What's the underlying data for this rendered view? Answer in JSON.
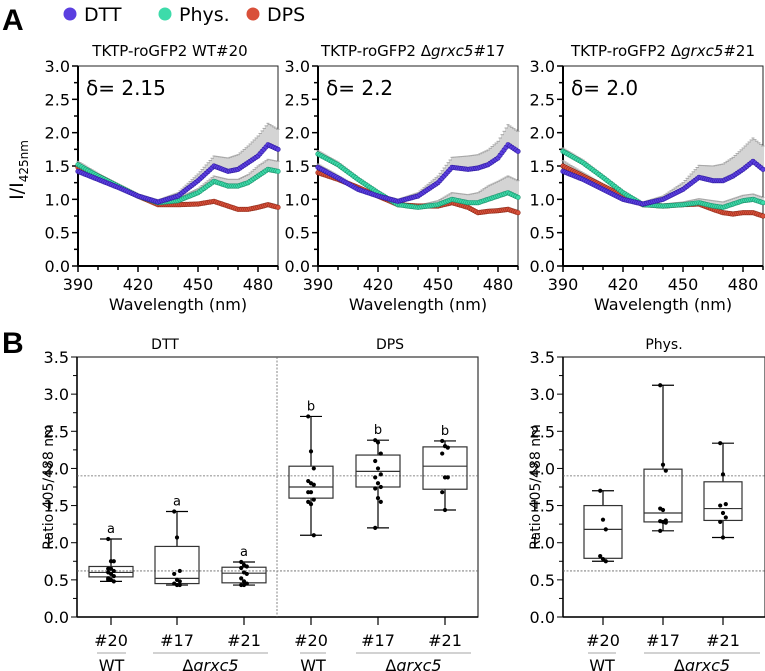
{
  "panel_labels": {
    "a": "A",
    "b": "B"
  },
  "legend": [
    {
      "label": "DTT",
      "color": "#5b3fe0"
    },
    {
      "label": "Phys.",
      "color": "#3ddbaa"
    },
    {
      "label": "DPS",
      "color": "#d9503a"
    }
  ],
  "chart_data": [
    {
      "type": "line",
      "title": "TKTP-roGFP2 WT#20",
      "annotation": "δ= 2.15",
      "xlabel": "Wavelength (nm)",
      "ylabel": "I/I425nm",
      "xlim": [
        390,
        490
      ],
      "ylim": [
        0,
        3.0
      ],
      "xticks": [
        390,
        420,
        450,
        480
      ],
      "yticks": [
        "0.0",
        "0.5",
        "1.0",
        "1.5",
        "2.0",
        "2.5",
        "3.0"
      ],
      "series": [
        {
          "name": "DTT",
          "x": [
            390,
            400,
            410,
            420,
            430,
            440,
            450,
            458,
            465,
            470,
            475,
            480,
            485,
            490
          ],
          "y": [
            1.42,
            1.3,
            1.18,
            1.05,
            0.96,
            1.05,
            1.28,
            1.5,
            1.42,
            1.45,
            1.55,
            1.65,
            1.82,
            1.75
          ],
          "err": [
            0.05,
            0.04,
            0.03,
            0.03,
            0.03,
            0.05,
            0.1,
            0.15,
            0.2,
            0.22,
            0.25,
            0.3,
            0.32,
            0.3
          ]
        },
        {
          "name": "Phys.",
          "x": [
            390,
            400,
            410,
            420,
            430,
            440,
            450,
            458,
            465,
            470,
            475,
            480,
            485,
            490
          ],
          "y": [
            1.52,
            1.35,
            1.2,
            1.05,
            0.95,
            0.98,
            1.1,
            1.27,
            1.2,
            1.2,
            1.25,
            1.35,
            1.45,
            1.42
          ],
          "err": [
            0.05,
            0.04,
            0.03,
            0.03,
            0.03,
            0.04,
            0.06,
            0.08,
            0.1,
            0.1,
            0.12,
            0.15,
            0.15,
            0.15
          ]
        },
        {
          "name": "DPS",
          "x": [
            390,
            400,
            410,
            420,
            430,
            440,
            450,
            458,
            465,
            470,
            475,
            480,
            485,
            490
          ],
          "y": [
            1.48,
            1.35,
            1.2,
            1.05,
            0.92,
            0.92,
            0.93,
            0.97,
            0.9,
            0.85,
            0.85,
            0.88,
            0.92,
            0.88
          ],
          "err": [
            0.03,
            0.03,
            0.02,
            0.02,
            0.02,
            0.02,
            0.02,
            0.02,
            0.02,
            0.02,
            0.02,
            0.03,
            0.03,
            0.03
          ]
        }
      ]
    },
    {
      "type": "line",
      "title": "TKTP-roGFP2 Δgrxc5#17",
      "title_plain": "TKTP-roGFP2 Δ",
      "title_italic": "grxc5",
      "title_suffix": "#17",
      "annotation": "δ= 2.2",
      "xlabel": "Wavelength (nm)",
      "xlim": [
        390,
        490
      ],
      "ylim": [
        0,
        3.0
      ],
      "xticks": [
        390,
        420,
        450,
        480
      ],
      "yticks": [
        "0.0",
        "0.5",
        "1.0",
        "1.5",
        "2.0",
        "2.5",
        "3.0"
      ],
      "series": [
        {
          "name": "DTT",
          "x": [
            390,
            400,
            410,
            420,
            430,
            440,
            450,
            457,
            465,
            470,
            475,
            480,
            485,
            490
          ],
          "y": [
            1.48,
            1.32,
            1.15,
            1.05,
            0.97,
            1.05,
            1.25,
            1.48,
            1.45,
            1.47,
            1.52,
            1.62,
            1.82,
            1.72
          ],
          "err": [
            0.05,
            0.04,
            0.03,
            0.03,
            0.03,
            0.05,
            0.1,
            0.15,
            0.2,
            0.2,
            0.22,
            0.25,
            0.3,
            0.3
          ]
        },
        {
          "name": "Phys.",
          "x": [
            390,
            400,
            410,
            420,
            430,
            440,
            450,
            457,
            465,
            470,
            475,
            480,
            485,
            490
          ],
          "y": [
            1.68,
            1.52,
            1.3,
            1.1,
            0.92,
            0.88,
            0.92,
            1.0,
            0.95,
            0.95,
            1.0,
            1.05,
            1.1,
            1.03
          ],
          "err": [
            0.05,
            0.04,
            0.03,
            0.03,
            0.03,
            0.03,
            0.06,
            0.1,
            0.12,
            0.15,
            0.2,
            0.22,
            0.25,
            0.25
          ]
        },
        {
          "name": "DPS",
          "x": [
            390,
            400,
            410,
            420,
            430,
            440,
            450,
            457,
            465,
            470,
            475,
            480,
            485,
            490
          ],
          "y": [
            1.4,
            1.3,
            1.18,
            1.05,
            0.92,
            0.9,
            0.9,
            0.95,
            0.88,
            0.8,
            0.82,
            0.83,
            0.85,
            0.8
          ],
          "err": [
            0.03,
            0.03,
            0.02,
            0.02,
            0.02,
            0.02,
            0.02,
            0.02,
            0.02,
            0.02,
            0.03,
            0.03,
            0.03,
            0.03
          ]
        }
      ]
    },
    {
      "type": "line",
      "title": "TKTP-roGFP2 Δgrxc5#21",
      "title_plain": "TKTP-roGFP2 Δ",
      "title_italic": "grxc5",
      "title_suffix": "#21",
      "annotation": "δ= 2.0",
      "xlabel": "Wavelength (nm)",
      "xlim": [
        390,
        490
      ],
      "ylim": [
        0,
        3.0
      ],
      "xticks": [
        390,
        420,
        450,
        480
      ],
      "yticks": [
        "0.0",
        "0.5",
        "1.0",
        "1.5",
        "2.0",
        "2.5",
        "3.0"
      ],
      "series": [
        {
          "name": "DTT",
          "x": [
            390,
            400,
            410,
            420,
            430,
            440,
            450,
            458,
            465,
            470,
            475,
            480,
            485,
            490
          ],
          "y": [
            1.42,
            1.3,
            1.15,
            1.0,
            0.93,
            1.0,
            1.15,
            1.33,
            1.28,
            1.28,
            1.35,
            1.45,
            1.57,
            1.45
          ],
          "err": [
            0.05,
            0.04,
            0.03,
            0.03,
            0.03,
            0.05,
            0.1,
            0.18,
            0.22,
            0.25,
            0.28,
            0.32,
            0.35,
            0.35
          ]
        },
        {
          "name": "Phys.",
          "x": [
            390,
            400,
            410,
            420,
            430,
            440,
            450,
            458,
            465,
            470,
            475,
            480,
            485,
            490
          ],
          "y": [
            1.72,
            1.55,
            1.33,
            1.1,
            0.92,
            0.9,
            0.92,
            0.95,
            0.9,
            0.88,
            0.93,
            0.98,
            1.0,
            0.95
          ],
          "err": [
            0.05,
            0.04,
            0.03,
            0.03,
            0.03,
            0.03,
            0.04,
            0.06,
            0.08,
            0.08,
            0.08,
            0.08,
            0.08,
            0.08
          ]
        },
        {
          "name": "DPS",
          "x": [
            390,
            400,
            410,
            420,
            430,
            440,
            450,
            458,
            465,
            470,
            475,
            480,
            485,
            490
          ],
          "y": [
            1.5,
            1.35,
            1.2,
            1.05,
            0.92,
            0.9,
            0.92,
            0.93,
            0.85,
            0.8,
            0.78,
            0.8,
            0.8,
            0.75
          ],
          "err": [
            0.08,
            0.05,
            0.03,
            0.02,
            0.02,
            0.02,
            0.02,
            0.03,
            0.03,
            0.03,
            0.03,
            0.03,
            0.03,
            0.03
          ]
        }
      ]
    },
    {
      "type": "box",
      "ylabel": "Ratio 405/488 nm",
      "ylim": [
        0,
        3.5
      ],
      "yticks": [
        "0.0",
        "0.5",
        "1.0",
        "1.5",
        "2.0",
        "2.5",
        "3.0",
        "3.5"
      ],
      "reference_lines": [
        1.9,
        0.62
      ],
      "group_titles": [
        "DTT",
        "DPS"
      ],
      "categories": [
        "#20",
        "#17",
        "#21",
        "#20",
        "#17",
        "#21"
      ],
      "genotype_labels": {
        "wt": "WT",
        "mutant_prefix": "Δ",
        "mutant_italic": "grxc5"
      },
      "boxes": [
        {
          "group": "DTT",
          "line": "#20",
          "letter": "a",
          "min": 0.48,
          "q1": 0.54,
          "median": 0.6,
          "q3": 0.68,
          "max": 1.05,
          "points": [
            1.05,
            0.75,
            0.75,
            0.65,
            0.65,
            0.62,
            0.6,
            0.58,
            0.55,
            0.52,
            0.5,
            0.48,
            0.5
          ]
        },
        {
          "group": "DTT",
          "line": "#17",
          "letter": "a",
          "min": 0.43,
          "q1": 0.45,
          "median": 0.52,
          "q3": 0.95,
          "max": 1.42,
          "points": [
            1.42,
            1.07,
            0.62,
            0.58,
            0.5,
            0.48,
            0.45,
            0.43,
            0.43
          ]
        },
        {
          "group": "DTT",
          "line": "#21",
          "letter": "a",
          "min": 0.43,
          "q1": 0.46,
          "median": 0.59,
          "q3": 0.67,
          "max": 0.74,
          "points": [
            0.74,
            0.7,
            0.68,
            0.66,
            0.6,
            0.58,
            0.52,
            0.48,
            0.45,
            0.43,
            0.43
          ]
        },
        {
          "group": "DPS",
          "line": "#20",
          "letter": "b",
          "min": 1.1,
          "q1": 1.6,
          "median": 1.75,
          "q3": 2.03,
          "max": 2.7,
          "points": [
            2.7,
            2.23,
            2.0,
            1.83,
            1.8,
            1.78,
            1.68,
            1.68,
            1.58,
            1.55,
            1.52,
            1.1
          ]
        },
        {
          "group": "DPS",
          "line": "#17",
          "letter": "b",
          "min": 1.2,
          "q1": 1.75,
          "median": 1.96,
          "q3": 2.18,
          "max": 2.38,
          "points": [
            2.38,
            2.35,
            2.2,
            2.1,
            2.0,
            1.92,
            1.88,
            1.8,
            1.75,
            1.73,
            1.6,
            1.55,
            1.2
          ]
        },
        {
          "group": "DPS",
          "line": "#21",
          "letter": "b",
          "min": 1.44,
          "q1": 1.72,
          "median": 2.03,
          "q3": 2.29,
          "max": 2.37,
          "points": [
            2.37,
            2.3,
            2.28,
            2.2,
            1.88,
            1.88,
            1.68,
            1.44
          ]
        }
      ]
    },
    {
      "type": "box",
      "title": "Phys.",
      "ylabel": "Ratio 405/488 nm",
      "ylim": [
        0,
        3.5
      ],
      "yticks": [
        "0.0",
        "0.5",
        "1.0",
        "1.5",
        "2.0",
        "2.5",
        "3.0",
        "3.5"
      ],
      "reference_lines": [
        1.9,
        0.62
      ],
      "categories": [
        "#20",
        "#17",
        "#21"
      ],
      "genotype_labels": {
        "wt": "WT",
        "mutant_prefix": "Δ",
        "mutant_italic": "grxc5"
      },
      "boxes": [
        {
          "line": "#20",
          "min": 0.75,
          "q1": 0.79,
          "median": 1.18,
          "q3": 1.5,
          "max": 1.7,
          "points": [
            1.7,
            1.31,
            1.18,
            0.82,
            0.78,
            0.75
          ]
        },
        {
          "line": "#17",
          "min": 1.16,
          "q1": 1.28,
          "median": 1.4,
          "q3": 1.99,
          "max": 3.12,
          "points": [
            3.12,
            2.05,
            1.97,
            1.46,
            1.44,
            1.3,
            1.29,
            1.28,
            1.27,
            1.16
          ]
        },
        {
          "line": "#21",
          "min": 1.07,
          "q1": 1.3,
          "median": 1.46,
          "q3": 1.82,
          "max": 2.34,
          "points": [
            2.34,
            1.92,
            1.52,
            1.5,
            1.4,
            1.34,
            1.28,
            1.07
          ]
        }
      ]
    }
  ]
}
